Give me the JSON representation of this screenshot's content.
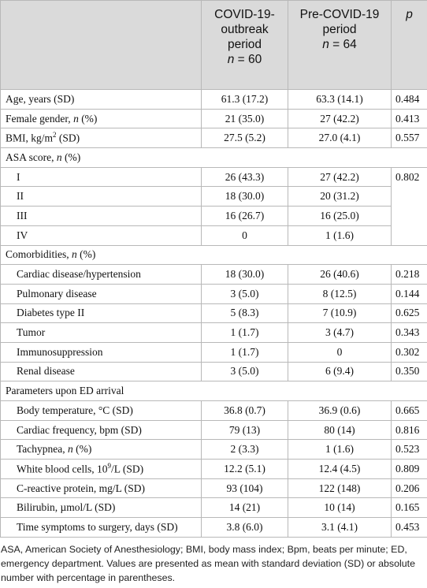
{
  "table": {
    "header": [
      {
        "title": "COVID-19-outbreak period",
        "n": [
          {
            "italic": "n"
          },
          " = 60"
        ]
      },
      {
        "title": "Pre-COVID-19 period",
        "n": [
          {
            "italic": "n"
          },
          " = 64"
        ]
      },
      {
        "title": "p"
      }
    ],
    "body": [
      {
        "label": "Age, years (SD)",
        "values": [
          "61.3 (17.2)",
          "63.3 (14.1)",
          "0.484"
        ]
      },
      {
        "label": [
          "Female gender, ",
          {
            "italic": "n"
          },
          " (%)"
        ],
        "values": [
          "21 (35.0)",
          "27 (42.2)",
          "0.413"
        ]
      },
      {
        "label": [
          "BMI, kg/m",
          {
            "sup": "2"
          },
          " (SD)"
        ],
        "values": [
          "27.5 (5.2)",
          "27.0 (4.1)",
          "0.557"
        ]
      },
      {
        "section": [
          "ASA score, ",
          {
            "italic": "n"
          },
          " (%)"
        ],
        "p": "0.802",
        "rows": [
          {
            "label": "I",
            "values": [
              "26 (43.3)",
              "27 (42.2)"
            ]
          },
          {
            "label": "II",
            "values": [
              "18 (30.0)",
              "20 (31.2)"
            ]
          },
          {
            "label": "III",
            "values": [
              "16 (26.7)",
              "16 (25.0)"
            ]
          },
          {
            "label": "IV",
            "values": [
              "0",
              "1 (1.6)"
            ]
          }
        ]
      },
      {
        "section": [
          "Comorbidities, ",
          {
            "italic": "n"
          },
          " (%)"
        ],
        "rows": [
          {
            "label": "Cardiac disease/hypertension",
            "values": [
              "18 (30.0)",
              "26 (40.6)",
              "0.218"
            ]
          },
          {
            "label": "Pulmonary disease",
            "values": [
              "3 (5.0)",
              "8 (12.5)",
              "0.144"
            ]
          },
          {
            "label": "Diabetes type II",
            "values": [
              "5 (8.3)",
              "7 (10.9)",
              "0.625"
            ]
          },
          {
            "label": "Tumor",
            "values": [
              "1 (1.7)",
              "3 (4.7)",
              "0.343"
            ]
          },
          {
            "label": "Immunosuppression",
            "values": [
              "1 (1.7)",
              "0",
              "0.302"
            ]
          },
          {
            "label": "Renal disease",
            "values": [
              "3 (5.0)",
              "6 (9.4)",
              "0.350"
            ]
          }
        ]
      },
      {
        "section": "Parameters upon ED arrival",
        "rows": [
          {
            "label": "Body temperature, °C (SD)",
            "values": [
              "36.8 (0.7)",
              "36.9 (0.6)",
              "0.665"
            ]
          },
          {
            "label": "Cardiac frequency, bpm (SD)",
            "values": [
              "79 (13)",
              "80 (14)",
              "0.816"
            ]
          },
          {
            "label": [
              "Tachypnea, ",
              {
                "italic": "n"
              },
              " (%)"
            ],
            "values": [
              "2 (3.3)",
              "1 (1.6)",
              "0.523"
            ]
          },
          {
            "label": [
              "White blood cells, 10",
              {
                "sup": "9"
              },
              "/L (SD)"
            ],
            "values": [
              "12.2 (5.1)",
              "12.4 (4.5)",
              "0.809"
            ]
          },
          {
            "label": "C-reactive protein, mg/L (SD)",
            "values": [
              "93 (104)",
              "122 (148)",
              "0.206"
            ]
          },
          {
            "label": "Bilirubin, µmol/L (SD)",
            "values": [
              "14 (21)",
              "10 (14)",
              "0.165"
            ]
          },
          {
            "label": "Time symptoms to surgery, days (SD)",
            "values": [
              "3.8 (6.0)",
              "3.1 (4.1)",
              "0.453"
            ]
          }
        ]
      }
    ]
  },
  "footnote": "ASA, American Society of Anesthesiology; BMI, body mass index; Bpm, beats per minute; ED, emergency department. Values are presented as mean with standard deviation (SD) or absolute number with percentage in parentheses."
}
